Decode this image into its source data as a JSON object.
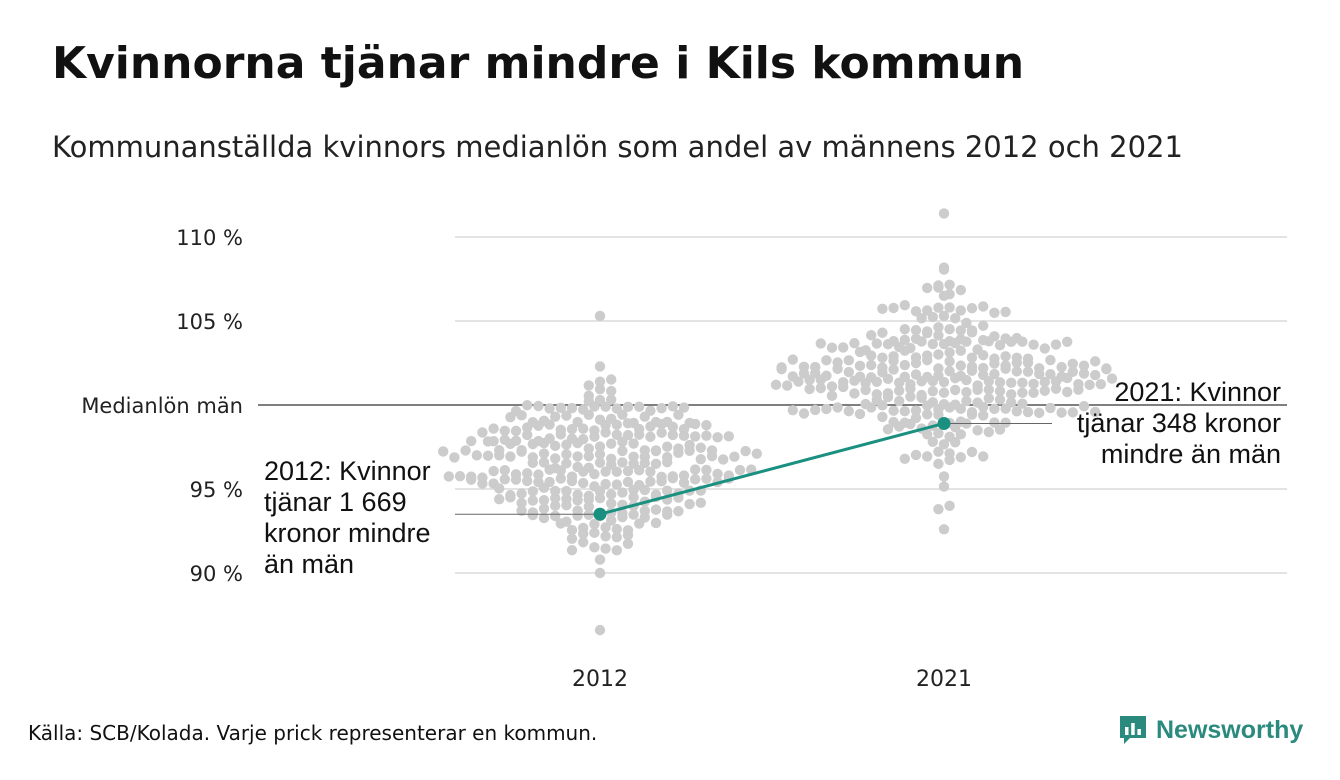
{
  "title": "Kvinnorna tjänar mindre i Kils kommun",
  "subtitle": "Kommunanställda kvinnors medianlön som andel av männens 2012 och 2021",
  "source": "Källa: SCB/Kolada. Varje prick representerar en kommun.",
  "brand": "Newsworthy",
  "colors": {
    "dots": "#cccccc",
    "highlight": "#1a9080",
    "grid": "#e3e3e3",
    "reference_line": "#333333"
  },
  "chart_data": {
    "type": "scatter",
    "subtype": "beeswarm",
    "categories": [
      "2012",
      "2021"
    ],
    "yaxis": {
      "ticks": [
        {
          "value": 90,
          "label": "90 %"
        },
        {
          "value": 95,
          "label": "95 %"
        },
        {
          "value": 100,
          "label": "Medianlön män"
        },
        {
          "value": 105,
          "label": "105 %"
        },
        {
          "value": 110,
          "label": "110 %"
        }
      ],
      "ylim": [
        86.5,
        111.5
      ]
    },
    "distributions": [
      {
        "category": "2012",
        "center": 96.3,
        "spread": 2.4,
        "min": 86.6,
        "max": 105.3,
        "count": 290
      },
      {
        "category": "2021",
        "center": 101.8,
        "spread": 2.3,
        "min": 92.6,
        "max": 111.4,
        "count": 290
      }
    ],
    "highlight": {
      "series": [
        {
          "values": [
            93.5,
            98.9
          ]
        }
      ]
    },
    "annotations": [
      {
        "category": "2012",
        "text": "2012: Kvinnor\ntjänar 1 669\nkronor mindre\nän män"
      },
      {
        "category": "2021",
        "text": "2021: Kvinnor\ntjänar 348 kronor\nmindre än män"
      }
    ]
  }
}
